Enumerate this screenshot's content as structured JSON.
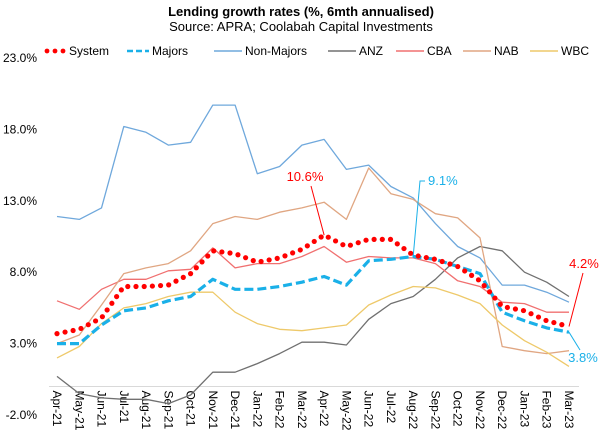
{
  "chart_data": {
    "type": "line",
    "title": "Lending growth rates (%, 6mth annualised)",
    "subtitle": "Source: APRA; Coolabah Capital Investments",
    "xlabel": "",
    "ylabel": "",
    "ylim": [
      -2.0,
      23.0
    ],
    "yticks": [
      "-2.0%",
      "3.0%",
      "8.0%",
      "13.0%",
      "18.0%",
      "23.0%"
    ],
    "ytick_values": [
      -2,
      3,
      8,
      13,
      18,
      23
    ],
    "grid": false,
    "legend_position": "top",
    "categories": [
      "Apr-21",
      "May-21",
      "Jun-21",
      "Jul-21",
      "Aug-21",
      "Sep-21",
      "Oct-21",
      "Nov-21",
      "Dec-21",
      "Jan-22",
      "Feb-22",
      "Mar-22",
      "Apr-22",
      "May-22",
      "Jun-22",
      "Jul-22",
      "Aug-22",
      "Sep-22",
      "Oct-22",
      "Nov-22",
      "Dec-22",
      "Jan-23",
      "Feb-23",
      "Mar-23"
    ],
    "series": [
      {
        "name": "System",
        "color": "#ff0000",
        "style": "dotted",
        "values": [
          3.7,
          4.0,
          4.8,
          7.0,
          7.0,
          7.1,
          7.9,
          9.5,
          9.3,
          8.7,
          9.0,
          9.6,
          10.6,
          9.8,
          10.3,
          10.3,
          9.2,
          8.9,
          8.4,
          7.4,
          5.6,
          5.3,
          4.6,
          4.2
        ]
      },
      {
        "name": "Majors",
        "color": "#1ab0e8",
        "style": "dashed",
        "values": [
          3.0,
          3.0,
          4.3,
          5.3,
          5.5,
          6.0,
          6.3,
          7.5,
          6.8,
          6.8,
          7.0,
          7.3,
          7.7,
          7.1,
          8.8,
          8.9,
          9.1,
          8.9,
          8.4,
          7.9,
          5.2,
          4.6,
          4.1,
          3.8
        ]
      },
      {
        "name": "Non-Majors",
        "color": "#6fa8dc",
        "style": "solid",
        "values": [
          11.9,
          11.7,
          12.5,
          18.2,
          17.8,
          16.9,
          17.1,
          19.7,
          19.7,
          14.9,
          15.4,
          16.9,
          17.3,
          15.2,
          15.5,
          14.0,
          13.2,
          11.4,
          9.8,
          9.0,
          7.1,
          7.1,
          6.6,
          5.9
        ]
      },
      {
        "name": "ANZ",
        "color": "#707070",
        "style": "solid",
        "values": [
          0.7,
          -0.5,
          -0.8,
          -0.9,
          -0.9,
          -1.2,
          -0.6,
          1.0,
          1.0,
          1.6,
          2.3,
          3.1,
          3.1,
          2.9,
          4.7,
          5.8,
          6.3,
          7.5,
          9.0,
          9.8,
          9.5,
          8.0,
          7.3,
          6.3
        ]
      },
      {
        "name": "CBA",
        "color": "#f07070",
        "style": "solid",
        "values": [
          6.0,
          5.4,
          6.8,
          7.5,
          7.5,
          8.1,
          8.2,
          9.7,
          8.3,
          8.6,
          8.6,
          9.1,
          9.8,
          8.7,
          9.1,
          9.0,
          9.0,
          8.6,
          7.4,
          7.0,
          5.9,
          5.8,
          5.2,
          5.2
        ]
      },
      {
        "name": "NAB",
        "color": "#e0a682",
        "style": "solid",
        "values": [
          3.0,
          3.6,
          5.7,
          7.9,
          8.3,
          8.6,
          9.5,
          11.4,
          11.9,
          11.7,
          12.2,
          12.5,
          12.9,
          11.7,
          15.3,
          13.5,
          13.1,
          12.1,
          11.8,
          10.4,
          2.8,
          2.5,
          2.3,
          2.5
        ]
      },
      {
        "name": "WBC",
        "color": "#eec96a",
        "style": "solid",
        "values": [
          2.0,
          2.8,
          4.4,
          5.5,
          5.8,
          6.3,
          6.6,
          6.6,
          5.2,
          4.4,
          4.0,
          3.9,
          4.1,
          4.3,
          5.7,
          6.4,
          7.0,
          6.9,
          6.4,
          5.8,
          4.3,
          3.2,
          2.4,
          1.4
        ]
      }
    ],
    "annotations": [
      {
        "text": "10.6%",
        "series": "System",
        "category": "Apr-22",
        "color": "#ff0000"
      },
      {
        "text": "9.1%",
        "series": "Majors",
        "category": "Aug-22",
        "color": "#1ab0e8"
      },
      {
        "text": "4.2%",
        "series": "System",
        "category": "Mar-23",
        "color": "#ff0000"
      },
      {
        "text": "3.8%",
        "series": "Majors",
        "category": "Mar-23",
        "color": "#1ab0e8"
      }
    ]
  }
}
